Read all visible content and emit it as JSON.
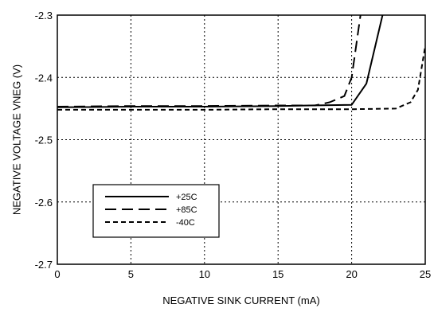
{
  "chart_data": {
    "type": "line",
    "title": "",
    "xlabel": "NEGATIVE SINK CURRENT (mA)",
    "ylabel": "NEGATIVE VOLTAGE VNEG (V)",
    "xlim": [
      0,
      25
    ],
    "ylim": [
      -2.7,
      -2.3
    ],
    "xticks": [
      0,
      5,
      10,
      15,
      20,
      25
    ],
    "yticks": [
      -2.3,
      -2.4,
      -2.5,
      -2.6,
      -2.7
    ],
    "xtick_labels": [
      "0",
      "5",
      "10",
      "15",
      "20",
      "25"
    ],
    "ytick_labels": [
      "-2.3",
      "-2.4",
      "-2.5",
      "-2.6",
      "-2.7"
    ],
    "grid": true,
    "legend_position": "bottom-left",
    "series": [
      {
        "name": "+25C",
        "style": "solid",
        "x": [
          0,
          5,
          10,
          15,
          20,
          21,
          22.1
        ],
        "y": [
          -2.448,
          -2.447,
          -2.447,
          -2.446,
          -2.444,
          -2.41,
          -2.3
        ]
      },
      {
        "name": "+85C",
        "style": "long-dash",
        "x": [
          0,
          5,
          10,
          15,
          17.5,
          18.5,
          19.5,
          20,
          20.6
        ],
        "y": [
          -2.447,
          -2.446,
          -2.446,
          -2.445,
          -2.445,
          -2.44,
          -2.43,
          -2.4,
          -2.3
        ]
      },
      {
        "name": "-40C",
        "style": "short-dash",
        "x": [
          0,
          5,
          10,
          15,
          20,
          23,
          24,
          24.5,
          25
        ],
        "y": [
          -2.452,
          -2.452,
          -2.452,
          -2.451,
          -2.451,
          -2.45,
          -2.44,
          -2.42,
          -2.35
        ]
      }
    ]
  }
}
